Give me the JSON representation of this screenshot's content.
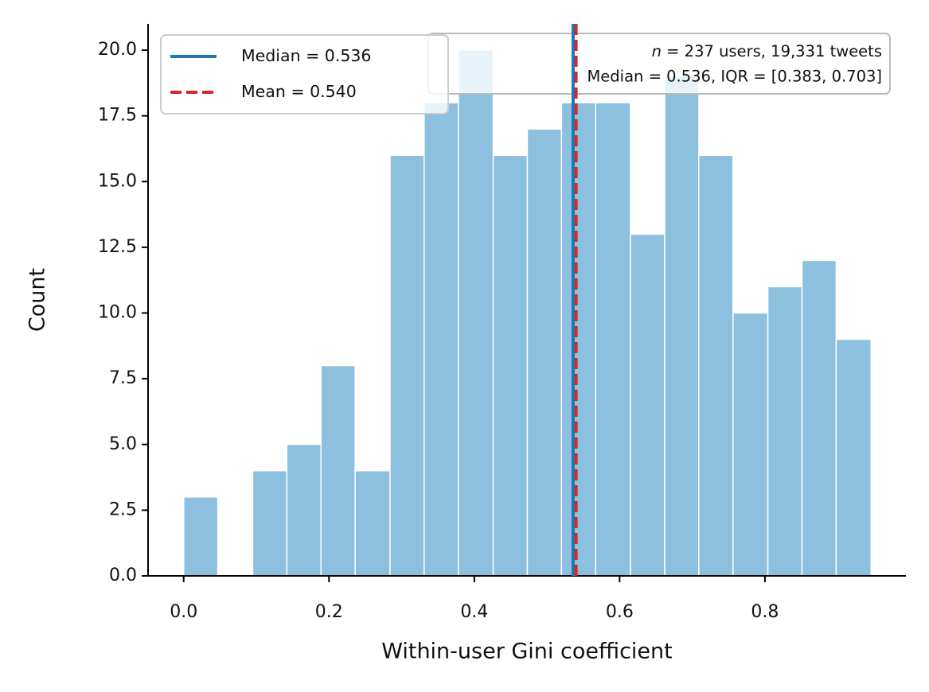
{
  "chart_data": {
    "type": "histogram",
    "x_label": "Within-user Gini coefficient",
    "y_label": "Count",
    "bins": [
      0,
      0.047,
      0.095,
      0.142,
      0.189,
      0.236,
      0.284,
      0.331,
      0.378,
      0.426,
      0.473,
      0.52,
      0.567,
      0.615,
      0.662,
      0.709,
      0.756,
      0.804,
      0.851,
      0.898,
      0.946
    ],
    "counts": [
      3,
      0,
      4,
      5,
      8,
      4,
      16,
      18,
      20,
      16,
      17,
      18,
      18,
      13,
      19,
      16,
      10,
      11,
      12,
      9
    ],
    "color": "#8cc0de",
    "xlim": [
      -0.049,
      0.994
    ],
    "ylim": [
      0,
      21
    ],
    "xticks": [
      {
        "value": 0,
        "label": "0.0"
      },
      {
        "value": 0.2,
        "label": "0.2"
      },
      {
        "value": 0.4,
        "label": "0.4"
      },
      {
        "value": 0.6,
        "label": "0.6"
      },
      {
        "value": 0.8,
        "label": "0.8"
      }
    ],
    "yticks": [
      {
        "value": 0,
        "label": "0.0"
      },
      {
        "value": 2.5,
        "label": "2.5"
      },
      {
        "value": 5,
        "label": "5.0"
      },
      {
        "value": 7.5,
        "label": "7.5"
      },
      {
        "value": 10,
        "label": "10.0"
      },
      {
        "value": 12.5,
        "label": "12.5"
      },
      {
        "value": 15,
        "label": "15.0"
      },
      {
        "value": 17.5,
        "label": "17.5"
      },
      {
        "value": 20,
        "label": "20.0"
      }
    ],
    "reference_lines": [
      {
        "name": "Median = 0.536",
        "value": 0.536,
        "color": "#1f77b4",
        "dashed": false
      },
      {
        "name": "Mean = 0.540",
        "value": 0.54,
        "color": "#d62728",
        "dashed": true
      }
    ],
    "legend": "upper left",
    "annotation": {
      "symbol": "n",
      "line1": " = 237 users, 19,331 tweets",
      "line2": "Median = 0.536,  IQR = [0.383, 0.703]"
    }
  }
}
